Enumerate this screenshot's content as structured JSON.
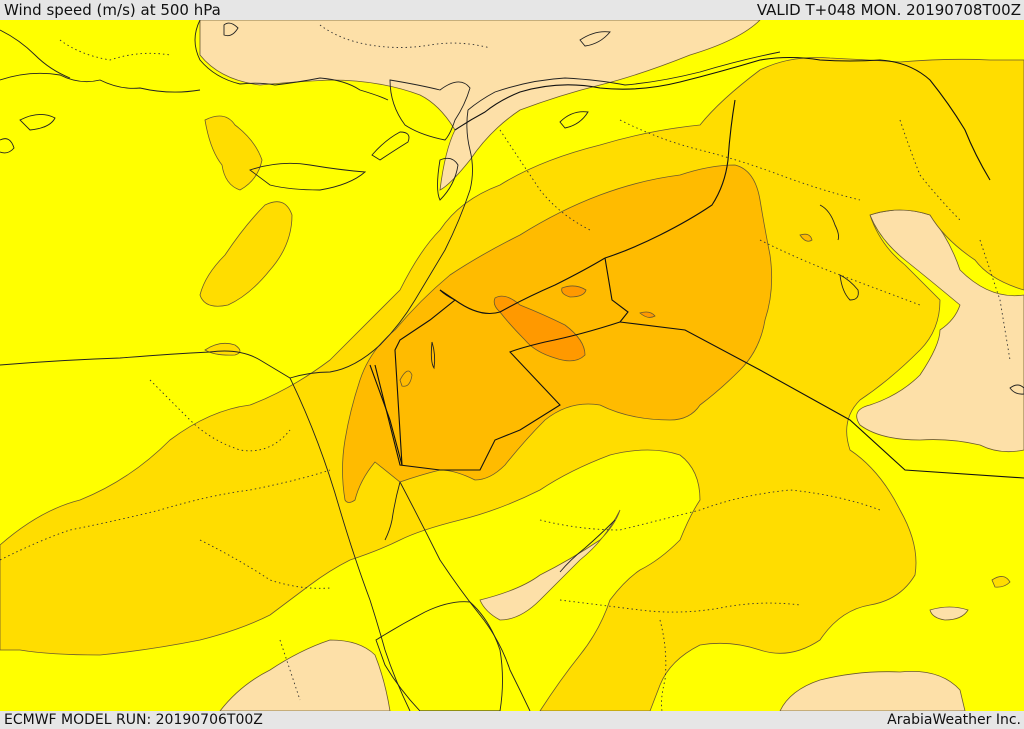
{
  "header": {
    "title": "Wind speed (m/s) at 500 hPa",
    "valid": "VALID T+048 MON. 20190708T00Z"
  },
  "footer": {
    "model_run": "ECMWF MODEL RUN: 20190706T00Z",
    "provider": "ArabiaWeather Inc."
  },
  "map": {
    "colors": {
      "lowest": "#fde0a8",
      "low": "#ffff00",
      "moderate": "#ffdd00",
      "high": "#ffbb00",
      "highest": "#ff9900",
      "missing": "#ffffff"
    }
  }
}
